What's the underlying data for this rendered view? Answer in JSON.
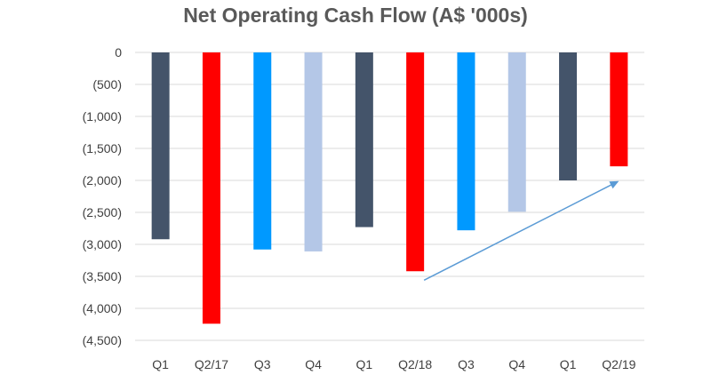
{
  "chart_data": {
    "type": "bar",
    "title": "Net Operating Cash Flow (A$ '000s)",
    "xlabel": "",
    "ylabel": "",
    "ylim": [
      -4500,
      0
    ],
    "y_ticks": [
      0,
      -500,
      -1000,
      -1500,
      -2000,
      -2500,
      -3000,
      -3500,
      -4000,
      -4500
    ],
    "y_tick_labels": [
      "0",
      "(500)",
      "(1,000)",
      "(1,500)",
      "(2,000)",
      "(2,500)",
      "(3,000)",
      "(3,500)",
      "(4,000)",
      "(4,500)"
    ],
    "categories": [
      "Q1",
      "Q2/17",
      "Q3",
      "Q4",
      "Q1",
      "Q2/18",
      "Q3",
      "Q4",
      "Q1",
      "Q2/19"
    ],
    "values": [
      -2920,
      -4240,
      -3080,
      -3110,
      -2730,
      -3420,
      -2780,
      -2490,
      -2000,
      -1780
    ],
    "colors": [
      "#44546A",
      "#FF0000",
      "#0099FF",
      "#B4C7E7",
      "#44546A",
      "#FF0000",
      "#0099FF",
      "#B4C7E7",
      "#44546A",
      "#FF0000"
    ],
    "annotation": {
      "type": "arrow",
      "from_category_index": 5,
      "from_value": -3560,
      "to_category_index": 9,
      "to_value": -2010,
      "color": "#5B9BD5"
    },
    "grid": true,
    "legend": "none"
  }
}
